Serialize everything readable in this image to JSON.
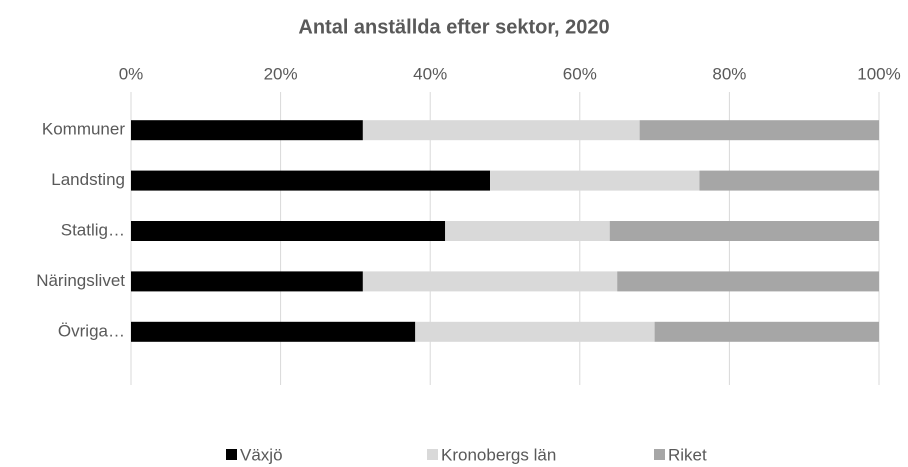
{
  "chart_data": {
    "type": "stacked-bar-horizontal",
    "title": "Antal anställda efter sektor, 2020",
    "categories": [
      "Kommuner",
      "Landsting",
      "Statlig…",
      "Näringslivet",
      "Övriga…"
    ],
    "series": [
      {
        "name": "Växjö",
        "color": "#000000",
        "values": [
          31,
          48,
          42,
          31,
          38
        ]
      },
      {
        "name": "Kronobergs län",
        "color": "#d9d9d9",
        "values": [
          37,
          28,
          22,
          34,
          32
        ]
      },
      {
        "name": "Riket",
        "color": "#a6a6a6",
        "values": [
          32,
          24,
          36,
          35,
          30
        ]
      }
    ],
    "xlim": [
      0,
      100
    ],
    "xticks": [
      {
        "value": 0,
        "label": "0%"
      },
      {
        "value": 20,
        "label": "20%"
      },
      {
        "value": 40,
        "label": "40%"
      },
      {
        "value": 60,
        "label": "60%"
      },
      {
        "value": 80,
        "label": "80%"
      },
      {
        "value": 100,
        "label": "100%"
      }
    ],
    "grid": true,
    "legend": "bottom"
  }
}
